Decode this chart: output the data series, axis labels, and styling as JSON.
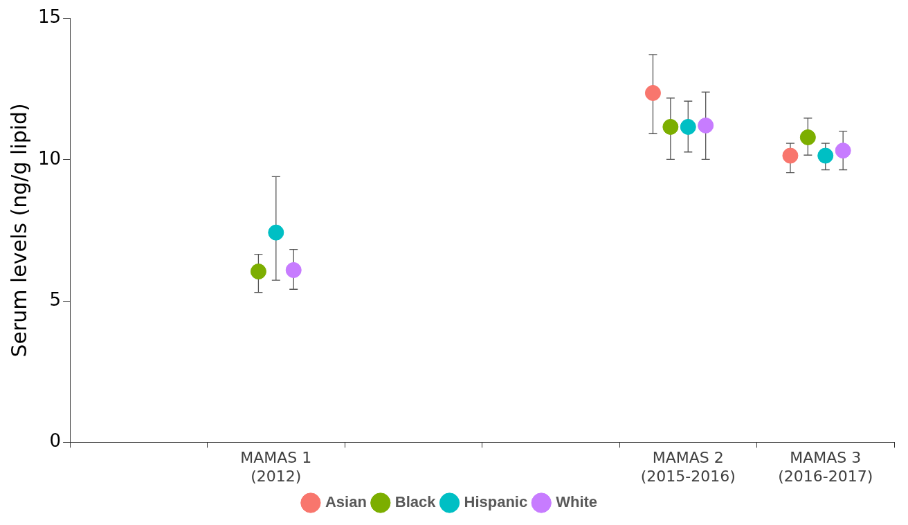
{
  "chart_data": {
    "type": "scatter",
    "ylabel": "Serum levels (ng/g lipid)",
    "categories": [
      null,
      "MAMAS 1\n(2012)",
      null,
      null,
      "MAMAS 2\n(2015-2016)",
      "MAMAS 3\n(2016-2017)"
    ],
    "series": [
      {
        "name": "Asian",
        "color": "#f8766d",
        "values": [
          null,
          null,
          null,
          null,
          12.36,
          10.14
        ],
        "errors": [
          null,
          null,
          null,
          null,
          [
            10.92,
            13.72
          ],
          [
            9.54,
            10.58
          ]
        ]
      },
      {
        "name": "Black",
        "color": "#7cae00",
        "values": [
          null,
          6.04,
          null,
          null,
          11.16,
          10.79
        ],
        "errors": [
          null,
          [
            5.3,
            6.65
          ],
          null,
          null,
          [
            10.01,
            12.18
          ],
          [
            10.16,
            11.47
          ]
        ]
      },
      {
        "name": "Hispanic",
        "color": "#00bfc4",
        "values": [
          null,
          7.42,
          null,
          null,
          11.16,
          10.14
        ],
        "errors": [
          null,
          [
            5.73,
            9.4
          ],
          null,
          null,
          [
            10.27,
            12.07
          ],
          [
            9.64,
            10.58
          ]
        ]
      },
      {
        "name": "White",
        "color": "#c77cff",
        "values": [
          null,
          6.09,
          null,
          null,
          11.21,
          10.32
        ],
        "errors": [
          null,
          [
            5.41,
            6.82
          ],
          null,
          null,
          [
            10.01,
            12.39
          ],
          [
            9.64,
            11.0
          ]
        ]
      }
    ],
    "ylim": [
      0,
      15
    ],
    "yticks": [
      0,
      5,
      10,
      15
    ],
    "grid": false,
    "legend": "bottom",
    "marker": "circle"
  }
}
